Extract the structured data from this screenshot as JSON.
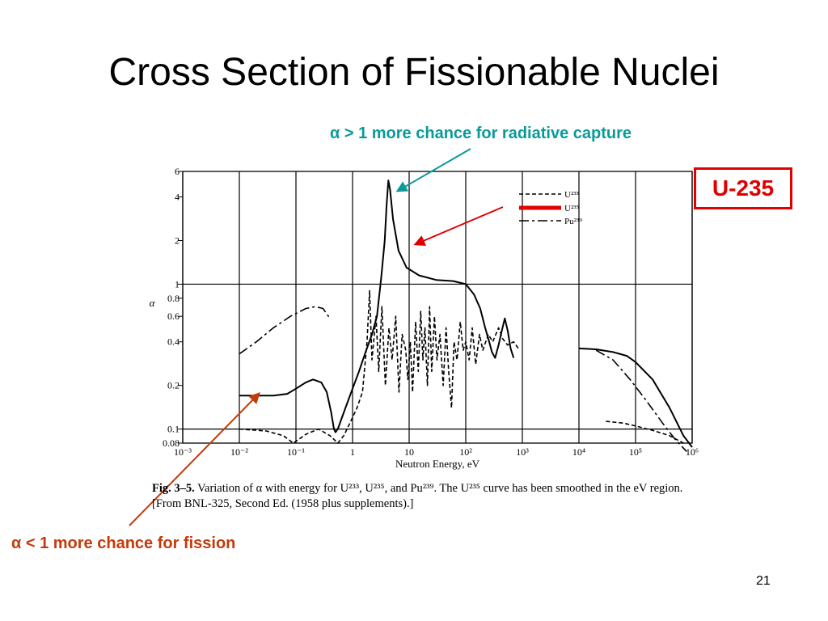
{
  "slide": {
    "title": "Cross Section of Fissionable Nuclei",
    "annotation_top": "α > 1 more chance for radiative capture",
    "annotation_bottom": "α < 1 more chance for fission",
    "highlight_label": "U-235",
    "page_number": "21",
    "colors": {
      "teal": "#0a9a9a",
      "red": "#e00000",
      "orange_red": "#c43a0a"
    }
  },
  "caption": {
    "fig_label": "Fig. 3–5.",
    "text": "Variation of α with energy for U²³³, U²³⁵, and Pu²³⁹. The U²³⁵ curve has been smoothed in the eV region. [From BNL-325, Second Ed. (1958 plus supplements).]"
  },
  "chart_data": {
    "type": "line",
    "xscale": "log",
    "yscale": "log",
    "xlabel": "Neutron Energy, eV",
    "ylabel": "α",
    "xlim": [
      0.001,
      1000000
    ],
    "ylim": [
      0.08,
      6
    ],
    "x_ticks": [
      {
        "v": 0.001,
        "label": "10⁻³"
      },
      {
        "v": 0.01,
        "label": "10⁻²"
      },
      {
        "v": 0.1,
        "label": "10⁻¹"
      },
      {
        "v": 1,
        "label": "1"
      },
      {
        "v": 10,
        "label": "10"
      },
      {
        "v": 100,
        "label": "10²"
      },
      {
        "v": 1000,
        "label": "10³"
      },
      {
        "v": 10000,
        "label": "10⁴"
      },
      {
        "v": 100000,
        "label": "10⁵"
      },
      {
        "v": 1000000,
        "label": "10⁶"
      }
    ],
    "y_ticks": [
      {
        "v": 0.08,
        "label": "0.08"
      },
      {
        "v": 0.1,
        "label": "0.1"
      },
      {
        "v": 0.2,
        "label": "0.2"
      },
      {
        "v": 0.4,
        "label": "0.4"
      },
      {
        "v": 0.6,
        "label": "0.6"
      },
      {
        "v": 0.8,
        "label": "0.8"
      },
      {
        "v": 1,
        "label": "1"
      },
      {
        "v": 2,
        "label": "2"
      },
      {
        "v": 4,
        "label": "4"
      },
      {
        "v": 6,
        "label": "6"
      }
    ],
    "grid": true,
    "legend_position": "top-right",
    "series": [
      {
        "name": "U²³³",
        "style": "dashed",
        "segments": [
          [
            [
              0.01,
              0.1
            ],
            [
              0.03,
              0.097
            ],
            [
              0.06,
              0.09
            ],
            [
              0.09,
              0.08
            ],
            [
              0.15,
              0.092
            ],
            [
              0.25,
              0.1
            ],
            [
              0.4,
              0.09
            ],
            [
              0.55,
              0.08
            ],
            [
              0.7,
              0.09
            ],
            [
              0.9,
              0.11
            ],
            [
              1.2,
              0.14
            ],
            [
              1.5,
              0.18
            ],
            [
              1.8,
              0.4
            ],
            [
              2.0,
              0.9
            ],
            [
              2.2,
              0.3
            ],
            [
              2.6,
              0.6
            ],
            [
              2.9,
              0.25
            ],
            [
              3.3,
              0.7
            ],
            [
              3.8,
              0.2
            ],
            [
              4.4,
              0.5
            ],
            [
              5.0,
              0.3
            ],
            [
              5.8,
              0.6
            ],
            [
              6.6,
              0.18
            ],
            [
              7.5,
              0.45
            ],
            [
              8.7,
              0.35
            ],
            [
              9.5,
              0.22
            ],
            [
              10.5,
              0.4
            ],
            [
              11.5,
              0.18
            ],
            [
              13,
              0.55
            ],
            [
              14.5,
              0.25
            ],
            [
              16,
              0.65
            ],
            [
              17.5,
              0.3
            ],
            [
              19,
              0.5
            ],
            [
              21,
              0.2
            ],
            [
              23,
              0.7
            ],
            [
              25,
              0.25
            ],
            [
              28,
              0.6
            ],
            [
              31,
              0.3
            ],
            [
              35,
              0.45
            ],
            [
              40,
              0.2
            ],
            [
              45,
              0.5
            ],
            [
              50,
              0.25
            ],
            [
              56,
              0.14
            ],
            [
              62,
              0.4
            ],
            [
              70,
              0.3
            ],
            [
              80,
              0.55
            ],
            [
              90,
              0.35
            ],
            [
              100,
              0.4
            ],
            [
              115,
              0.3
            ],
            [
              130,
              0.5
            ],
            [
              150,
              0.28
            ],
            [
              175,
              0.45
            ],
            [
              200,
              0.35
            ],
            [
              250,
              0.45
            ],
            [
              300,
              0.4
            ],
            [
              380,
              0.5
            ],
            [
              450,
              0.42
            ],
            [
              550,
              0.38
            ],
            [
              700,
              0.4
            ],
            [
              850,
              0.36
            ]
          ],
          [
            [
              30000,
              0.113
            ],
            [
              60000,
              0.11
            ],
            [
              100000,
              0.105
            ],
            [
              200000,
              0.098
            ],
            [
              400000,
              0.09
            ],
            [
              700000,
              0.08
            ]
          ]
        ]
      },
      {
        "name": "U²³⁵",
        "style": "solid",
        "segments": [
          [
            [
              0.01,
              0.17
            ],
            [
              0.02,
              0.17
            ],
            [
              0.04,
              0.17
            ],
            [
              0.07,
              0.175
            ],
            [
              0.1,
              0.19
            ],
            [
              0.15,
              0.21
            ],
            [
              0.2,
              0.22
            ],
            [
              0.28,
              0.21
            ],
            [
              0.35,
              0.18
            ],
            [
              0.42,
              0.13
            ],
            [
              0.47,
              0.1
            ],
            [
              0.5,
              0.095
            ],
            [
              0.55,
              0.1
            ],
            [
              0.65,
              0.12
            ],
            [
              0.8,
              0.15
            ],
            [
              1.0,
              0.19
            ],
            [
              1.3,
              0.25
            ],
            [
              1.7,
              0.34
            ],
            [
              2.2,
              0.45
            ],
            [
              2.7,
              0.6
            ],
            [
              3.2,
              1.1
            ],
            [
              3.7,
              2.0
            ],
            [
              4.0,
              3.5
            ],
            [
              4.3,
              5.2
            ],
            [
              4.6,
              4.5
            ],
            [
              5.2,
              2.8
            ],
            [
              6.5,
              1.7
            ],
            [
              9,
              1.3
            ],
            [
              15,
              1.15
            ],
            [
              30,
              1.07
            ],
            [
              60,
              1.05
            ],
            [
              100,
              1.0
            ],
            [
              140,
              0.85
            ],
            [
              180,
              0.68
            ],
            [
              220,
              0.5
            ],
            [
              260,
              0.4
            ],
            [
              290,
              0.34
            ],
            [
              330,
              0.31
            ],
            [
              380,
              0.38
            ],
            [
              430,
              0.47
            ],
            [
              490,
              0.58
            ],
            [
              550,
              0.48
            ],
            [
              620,
              0.36
            ],
            [
              700,
              0.31
            ]
          ],
          [
            [
              10000,
              0.36
            ],
            [
              20000,
              0.355
            ],
            [
              40000,
              0.34
            ],
            [
              70000,
              0.32
            ],
            [
              100000,
              0.29
            ],
            [
              200000,
              0.22
            ],
            [
              400000,
              0.14
            ],
            [
              700000,
              0.09
            ],
            [
              1000000,
              0.075
            ]
          ]
        ]
      },
      {
        "name": "Pu²³⁹",
        "style": "dashdot",
        "segments": [
          [
            [
              0.01,
              0.33
            ],
            [
              0.02,
              0.4
            ],
            [
              0.04,
              0.5
            ],
            [
              0.08,
              0.6
            ],
            [
              0.15,
              0.68
            ],
            [
              0.22,
              0.7
            ],
            [
              0.3,
              0.68
            ],
            [
              0.4,
              0.58
            ]
          ],
          [
            [
              20000,
              0.35
            ],
            [
              40000,
              0.3
            ],
            [
              80000,
              0.22
            ],
            [
              150000,
              0.16
            ],
            [
              300000,
              0.11
            ],
            [
              500000,
              0.085
            ],
            [
              800000,
              0.07
            ]
          ]
        ]
      }
    ]
  }
}
